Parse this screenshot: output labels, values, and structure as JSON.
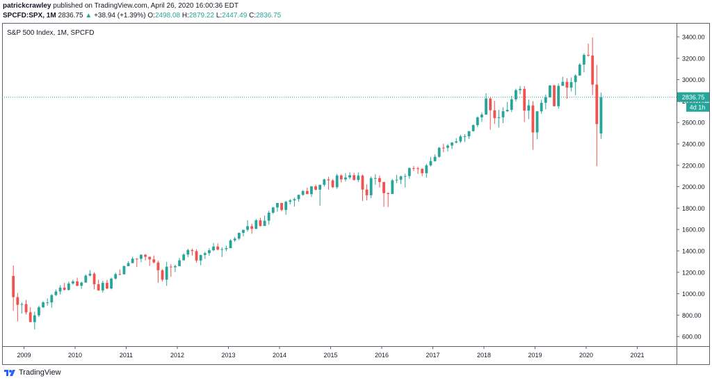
{
  "header": {
    "author": "patrickcrawley",
    "published_text": "published on TradingView.com, April 26, 2020 16:00:36 EDT",
    "symbol": "SPCFD:SPX, 1M",
    "last_price": "2836.75",
    "change_arrow": "▲",
    "change": "+38.94 (+1.39%)",
    "o_label": "O:",
    "o_value": "2498.08",
    "h_label": "H:",
    "h_value": "2879.22",
    "l_label": "L:",
    "l_value": "2447.49",
    "c_label": "C:",
    "c_value": "2836.75"
  },
  "footer": {
    "brand": "TradingView"
  },
  "colors": {
    "up": "#26a69a",
    "down": "#ef5350",
    "price_line": "#26a69a",
    "text": "#131722",
    "border": "#5d606b"
  },
  "chart_data": {
    "type": "candlestick",
    "title": "S&P 500 Index, 1M, SPCFD",
    "start_month": "2008-10",
    "xaxis_labels": [
      "2009",
      "2010",
      "2011",
      "2012",
      "2013",
      "2014",
      "2015",
      "2016",
      "2017",
      "2018",
      "2019",
      "2020",
      "2021"
    ],
    "yaxis_labels": [
      "600.00",
      "800.00",
      "1000.00",
      "1200.00",
      "1400.00",
      "1600.00",
      "1800.00",
      "2000.00",
      "2200.00",
      "2400.00",
      "2600.00",
      "2800.00",
      "3000.00",
      "3200.00",
      "3400.00"
    ],
    "ylim": [
      510,
      3530
    ],
    "last_price_label": "2836.75",
    "countdown_label": "4d 1h",
    "candles": [
      {
        "t": "2008-10",
        "o": 1166,
        "h": 1264,
        "l": 840,
        "c": 968
      },
      {
        "t": "2008-11",
        "o": 968,
        "h": 1007,
        "l": 741,
        "c": 896
      },
      {
        "t": "2008-12",
        "o": 896,
        "h": 918,
        "l": 815,
        "c": 903
      },
      {
        "t": "2009-01",
        "o": 903,
        "h": 943,
        "l": 805,
        "c": 826
      },
      {
        "t": "2009-02",
        "o": 826,
        "h": 875,
        "l": 735,
        "c": 735
      },
      {
        "t": "2009-03",
        "o": 735,
        "h": 832,
        "l": 667,
        "c": 798
      },
      {
        "t": "2009-04",
        "o": 798,
        "h": 888,
        "l": 783,
        "c": 873
      },
      {
        "t": "2009-05",
        "o": 873,
        "h": 930,
        "l": 866,
        "c": 919
      },
      {
        "t": "2009-06",
        "o": 919,
        "h": 956,
        "l": 888,
        "c": 919
      },
      {
        "t": "2009-07",
        "o": 919,
        "h": 996,
        "l": 869,
        "c": 987
      },
      {
        "t": "2009-08",
        "o": 987,
        "h": 1039,
        "l": 979,
        "c": 1021
      },
      {
        "t": "2009-09",
        "o": 1021,
        "h": 1080,
        "l": 993,
        "c": 1057
      },
      {
        "t": "2009-10",
        "o": 1057,
        "h": 1101,
        "l": 1030,
        "c": 1036
      },
      {
        "t": "2009-11",
        "o": 1036,
        "h": 1113,
        "l": 1029,
        "c": 1096
      },
      {
        "t": "2009-12",
        "o": 1096,
        "h": 1130,
        "l": 1085,
        "c": 1115
      },
      {
        "t": "2010-01",
        "o": 1115,
        "h": 1150,
        "l": 1071,
        "c": 1074
      },
      {
        "t": "2010-02",
        "o": 1074,
        "h": 1112,
        "l": 1045,
        "c": 1104
      },
      {
        "t": "2010-03",
        "o": 1104,
        "h": 1180,
        "l": 1102,
        "c": 1169
      },
      {
        "t": "2010-04",
        "o": 1169,
        "h": 1220,
        "l": 1163,
        "c": 1187
      },
      {
        "t": "2010-05",
        "o": 1187,
        "h": 1200,
        "l": 1040,
        "c": 1089
      },
      {
        "t": "2010-06",
        "o": 1089,
        "h": 1131,
        "l": 1028,
        "c": 1031
      },
      {
        "t": "2010-07",
        "o": 1031,
        "h": 1120,
        "l": 1010,
        "c": 1102
      },
      {
        "t": "2010-08",
        "o": 1102,
        "h": 1130,
        "l": 1040,
        "c": 1049
      },
      {
        "t": "2010-09",
        "o": 1049,
        "h": 1150,
        "l": 1040,
        "c": 1141
      },
      {
        "t": "2010-10",
        "o": 1141,
        "h": 1196,
        "l": 1132,
        "c": 1183
      },
      {
        "t": "2010-11",
        "o": 1183,
        "h": 1227,
        "l": 1174,
        "c": 1181
      },
      {
        "t": "2010-12",
        "o": 1181,
        "h": 1263,
        "l": 1180,
        "c": 1258
      },
      {
        "t": "2011-01",
        "o": 1258,
        "h": 1303,
        "l": 1257,
        "c": 1286
      },
      {
        "t": "2011-02",
        "o": 1286,
        "h": 1345,
        "l": 1284,
        "c": 1327
      },
      {
        "t": "2011-03",
        "o": 1327,
        "h": 1333,
        "l": 1249,
        "c": 1326
      },
      {
        "t": "2011-04",
        "o": 1326,
        "h": 1369,
        "l": 1294,
        "c": 1364
      },
      {
        "t": "2011-05",
        "o": 1364,
        "h": 1371,
        "l": 1311,
        "c": 1345
      },
      {
        "t": "2011-06",
        "o": 1345,
        "h": 1346,
        "l": 1259,
        "c": 1321
      },
      {
        "t": "2011-07",
        "o": 1321,
        "h": 1357,
        "l": 1283,
        "c": 1292
      },
      {
        "t": "2011-08",
        "o": 1292,
        "h": 1308,
        "l": 1102,
        "c": 1219
      },
      {
        "t": "2011-09",
        "o": 1219,
        "h": 1230,
        "l": 1115,
        "c": 1131
      },
      {
        "t": "2011-10",
        "o": 1131,
        "h": 1298,
        "l": 1074,
        "c": 1253
      },
      {
        "t": "2011-11",
        "o": 1253,
        "h": 1277,
        "l": 1158,
        "c": 1247
      },
      {
        "t": "2011-12",
        "o": 1247,
        "h": 1270,
        "l": 1202,
        "c": 1258
      },
      {
        "t": "2012-01",
        "o": 1258,
        "h": 1334,
        "l": 1258,
        "c": 1312
      },
      {
        "t": "2012-02",
        "o": 1312,
        "h": 1378,
        "l": 1312,
        "c": 1366
      },
      {
        "t": "2012-03",
        "o": 1366,
        "h": 1420,
        "l": 1341,
        "c": 1408
      },
      {
        "t": "2012-04",
        "o": 1408,
        "h": 1422,
        "l": 1357,
        "c": 1398
      },
      {
        "t": "2012-05",
        "o": 1398,
        "h": 1415,
        "l": 1291,
        "c": 1310
      },
      {
        "t": "2012-06",
        "o": 1310,
        "h": 1363,
        "l": 1266,
        "c": 1362
      },
      {
        "t": "2012-07",
        "o": 1362,
        "h": 1392,
        "l": 1325,
        "c": 1379
      },
      {
        "t": "2012-08",
        "o": 1379,
        "h": 1426,
        "l": 1354,
        "c": 1406
      },
      {
        "t": "2012-09",
        "o": 1406,
        "h": 1474,
        "l": 1397,
        "c": 1441
      },
      {
        "t": "2012-10",
        "o": 1441,
        "h": 1470,
        "l": 1403,
        "c": 1412
      },
      {
        "t": "2012-11",
        "o": 1412,
        "h": 1434,
        "l": 1343,
        "c": 1416
      },
      {
        "t": "2012-12",
        "o": 1416,
        "h": 1448,
        "l": 1398,
        "c": 1426
      },
      {
        "t": "2013-01",
        "o": 1426,
        "h": 1509,
        "l": 1426,
        "c": 1498
      },
      {
        "t": "2013-02",
        "o": 1498,
        "h": 1530,
        "l": 1485,
        "c": 1515
      },
      {
        "t": "2013-03",
        "o": 1515,
        "h": 1570,
        "l": 1501,
        "c": 1569
      },
      {
        "t": "2013-04",
        "o": 1569,
        "h": 1598,
        "l": 1536,
        "c": 1597
      },
      {
        "t": "2013-05",
        "o": 1597,
        "h": 1687,
        "l": 1581,
        "c": 1631
      },
      {
        "t": "2013-06",
        "o": 1631,
        "h": 1654,
        "l": 1560,
        "c": 1606
      },
      {
        "t": "2013-07",
        "o": 1606,
        "h": 1698,
        "l": 1604,
        "c": 1686
      },
      {
        "t": "2013-08",
        "o": 1686,
        "h": 1709,
        "l": 1627,
        "c": 1633
      },
      {
        "t": "2013-09",
        "o": 1633,
        "h": 1730,
        "l": 1633,
        "c": 1682
      },
      {
        "t": "2013-10",
        "o": 1682,
        "h": 1776,
        "l": 1646,
        "c": 1757
      },
      {
        "t": "2013-11",
        "o": 1757,
        "h": 1813,
        "l": 1746,
        "c": 1806
      },
      {
        "t": "2013-12",
        "o": 1806,
        "h": 1849,
        "l": 1767,
        "c": 1848
      },
      {
        "t": "2014-01",
        "o": 1848,
        "h": 1850,
        "l": 1770,
        "c": 1783
      },
      {
        "t": "2014-02",
        "o": 1783,
        "h": 1867,
        "l": 1737,
        "c": 1859
      },
      {
        "t": "2014-03",
        "o": 1859,
        "h": 1884,
        "l": 1834,
        "c": 1872
      },
      {
        "t": "2014-04",
        "o": 1872,
        "h": 1897,
        "l": 1814,
        "c": 1884
      },
      {
        "t": "2014-05",
        "o": 1884,
        "h": 1924,
        "l": 1859,
        "c": 1924
      },
      {
        "t": "2014-06",
        "o": 1924,
        "h": 1968,
        "l": 1915,
        "c": 1960
      },
      {
        "t": "2014-07",
        "o": 1960,
        "h": 1991,
        "l": 1930,
        "c": 1931
      },
      {
        "t": "2014-08",
        "o": 1931,
        "h": 2005,
        "l": 1904,
        "c": 2003
      },
      {
        "t": "2014-09",
        "o": 2003,
        "h": 2019,
        "l": 1964,
        "c": 1972
      },
      {
        "t": "2014-10",
        "o": 1972,
        "h": 2018,
        "l": 1821,
        "c": 2018
      },
      {
        "t": "2014-11",
        "o": 2018,
        "h": 2075,
        "l": 2001,
        "c": 2068
      },
      {
        "t": "2014-12",
        "o": 2068,
        "h": 2093,
        "l": 1972,
        "c": 2059
      },
      {
        "t": "2015-01",
        "o": 2059,
        "h": 2072,
        "l": 1988,
        "c": 1995
      },
      {
        "t": "2015-02",
        "o": 1995,
        "h": 2119,
        "l": 1980,
        "c": 2105
      },
      {
        "t": "2015-03",
        "o": 2105,
        "h": 2117,
        "l": 2040,
        "c": 2068
      },
      {
        "t": "2015-04",
        "o": 2068,
        "h": 2126,
        "l": 2048,
        "c": 2086
      },
      {
        "t": "2015-05",
        "o": 2086,
        "h": 2135,
        "l": 2068,
        "c": 2107
      },
      {
        "t": "2015-06",
        "o": 2107,
        "h": 2130,
        "l": 2057,
        "c": 2063
      },
      {
        "t": "2015-07",
        "o": 2063,
        "h": 2133,
        "l": 2044,
        "c": 2104
      },
      {
        "t": "2015-08",
        "o": 2104,
        "h": 2113,
        "l": 1867,
        "c": 1973
      },
      {
        "t": "2015-09",
        "o": 1973,
        "h": 2021,
        "l": 1872,
        "c": 1920
      },
      {
        "t": "2015-10",
        "o": 1920,
        "h": 2095,
        "l": 1893,
        "c": 2079
      },
      {
        "t": "2015-11",
        "o": 2079,
        "h": 2117,
        "l": 2019,
        "c": 2080
      },
      {
        "t": "2015-12",
        "o": 2080,
        "h": 2104,
        "l": 1993,
        "c": 2044
      },
      {
        "t": "2016-01",
        "o": 2044,
        "h": 2044,
        "l": 1812,
        "c": 1940
      },
      {
        "t": "2016-02",
        "o": 1940,
        "h": 1947,
        "l": 1810,
        "c": 1932
      },
      {
        "t": "2016-03",
        "o": 1932,
        "h": 2072,
        "l": 1931,
        "c": 2060
      },
      {
        "t": "2016-04",
        "o": 2060,
        "h": 2111,
        "l": 2033,
        "c": 2065
      },
      {
        "t": "2016-05",
        "o": 2065,
        "h": 2103,
        "l": 2025,
        "c": 2097
      },
      {
        "t": "2016-06",
        "o": 2097,
        "h": 2120,
        "l": 1992,
        "c": 2099
      },
      {
        "t": "2016-07",
        "o": 2099,
        "h": 2178,
        "l": 2074,
        "c": 2174
      },
      {
        "t": "2016-08",
        "o": 2174,
        "h": 2194,
        "l": 2147,
        "c": 2171
      },
      {
        "t": "2016-09",
        "o": 2171,
        "h": 2187,
        "l": 2119,
        "c": 2168
      },
      {
        "t": "2016-10",
        "o": 2168,
        "h": 2170,
        "l": 2097,
        "c": 2126
      },
      {
        "t": "2016-11",
        "o": 2126,
        "h": 2214,
        "l": 2084,
        "c": 2199
      },
      {
        "t": "2016-12",
        "o": 2199,
        "h": 2278,
        "l": 2188,
        "c": 2239
      },
      {
        "t": "2017-01",
        "o": 2239,
        "h": 2301,
        "l": 2233,
        "c": 2279
      },
      {
        "t": "2017-02",
        "o": 2279,
        "h": 2371,
        "l": 2271,
        "c": 2364
      },
      {
        "t": "2017-03",
        "o": 2364,
        "h": 2401,
        "l": 2322,
        "c": 2363
      },
      {
        "t": "2017-04",
        "o": 2363,
        "h": 2398,
        "l": 2329,
        "c": 2384
      },
      {
        "t": "2017-05",
        "o": 2384,
        "h": 2418,
        "l": 2352,
        "c": 2412
      },
      {
        "t": "2017-06",
        "o": 2412,
        "h": 2454,
        "l": 2405,
        "c": 2423
      },
      {
        "t": "2017-07",
        "o": 2423,
        "h": 2484,
        "l": 2407,
        "c": 2470
      },
      {
        "t": "2017-08",
        "o": 2470,
        "h": 2491,
        "l": 2417,
        "c": 2471
      },
      {
        "t": "2017-09",
        "o": 2471,
        "h": 2519,
        "l": 2446,
        "c": 2519
      },
      {
        "t": "2017-10",
        "o": 2519,
        "h": 2582,
        "l": 2515,
        "c": 2575
      },
      {
        "t": "2017-11",
        "o": 2575,
        "h": 2657,
        "l": 2557,
        "c": 2648
      },
      {
        "t": "2017-12",
        "o": 2648,
        "h": 2694,
        "l": 2605,
        "c": 2674
      },
      {
        "t": "2018-01",
        "o": 2674,
        "h": 2873,
        "l": 2673,
        "c": 2824
      },
      {
        "t": "2018-02",
        "o": 2824,
        "h": 2835,
        "l": 2533,
        "c": 2714
      },
      {
        "t": "2018-03",
        "o": 2714,
        "h": 2802,
        "l": 2586,
        "c": 2641
      },
      {
        "t": "2018-04",
        "o": 2641,
        "h": 2718,
        "l": 2553,
        "c": 2648
      },
      {
        "t": "2018-05",
        "o": 2648,
        "h": 2742,
        "l": 2594,
        "c": 2705
      },
      {
        "t": "2018-06",
        "o": 2705,
        "h": 2791,
        "l": 2698,
        "c": 2718
      },
      {
        "t": "2018-07",
        "o": 2718,
        "h": 2848,
        "l": 2698,
        "c": 2816
      },
      {
        "t": "2018-08",
        "o": 2816,
        "h": 2916,
        "l": 2796,
        "c": 2902
      },
      {
        "t": "2018-09",
        "o": 2902,
        "h": 2941,
        "l": 2864,
        "c": 2914
      },
      {
        "t": "2018-10",
        "o": 2914,
        "h": 2940,
        "l": 2604,
        "c": 2711
      },
      {
        "t": "2018-11",
        "o": 2711,
        "h": 2815,
        "l": 2631,
        "c": 2760
      },
      {
        "t": "2018-12",
        "o": 2760,
        "h": 2800,
        "l": 2346,
        "c": 2507
      },
      {
        "t": "2019-01",
        "o": 2507,
        "h": 2708,
        "l": 2443,
        "c": 2704
      },
      {
        "t": "2019-02",
        "o": 2704,
        "h": 2813,
        "l": 2681,
        "c": 2784
      },
      {
        "t": "2019-03",
        "o": 2784,
        "h": 2860,
        "l": 2722,
        "c": 2834
      },
      {
        "t": "2019-04",
        "o": 2834,
        "h": 2949,
        "l": 2848,
        "c": 2946
      },
      {
        "t": "2019-05",
        "o": 2946,
        "h": 2954,
        "l": 2750,
        "c": 2752
      },
      {
        "t": "2019-06",
        "o": 2752,
        "h": 2964,
        "l": 2728,
        "c": 2942
      },
      {
        "t": "2019-07",
        "o": 2942,
        "h": 3027,
        "l": 2952,
        "c": 2980
      },
      {
        "t": "2019-08",
        "o": 2980,
        "h": 3014,
        "l": 2822,
        "c": 2926
      },
      {
        "t": "2019-09",
        "o": 2926,
        "h": 3021,
        "l": 2891,
        "c": 2977
      },
      {
        "t": "2019-10",
        "o": 2977,
        "h": 3050,
        "l": 2855,
        "c": 3038
      },
      {
        "t": "2019-11",
        "o": 3038,
        "h": 3154,
        "l": 3050,
        "c": 3141
      },
      {
        "t": "2019-12",
        "o": 3141,
        "h": 3247,
        "l": 3070,
        "c": 3231
      },
      {
        "t": "2020-01",
        "o": 3231,
        "h": 3338,
        "l": 3214,
        "c": 3226
      },
      {
        "t": "2020-02",
        "o": 3226,
        "h": 3394,
        "l": 2855,
        "c": 2954
      },
      {
        "t": "2020-03",
        "o": 2954,
        "h": 3137,
        "l": 2192,
        "c": 2585
      },
      {
        "t": "2020-04",
        "o": 2498,
        "h": 2879,
        "l": 2447,
        "c": 2837
      }
    ]
  }
}
